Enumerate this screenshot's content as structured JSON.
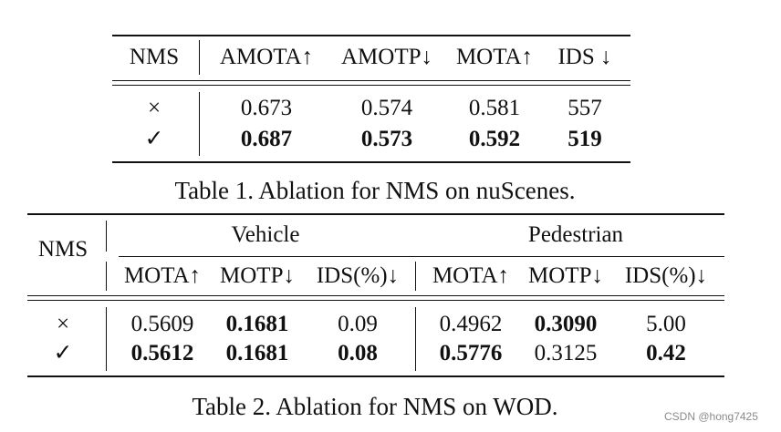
{
  "table1": {
    "headers": [
      "NMS",
      "AMOTA↑",
      "AMOTP↓",
      "MOTA↑",
      "IDS ↓"
    ],
    "rows": [
      [
        "×",
        "0.673",
        "0.574",
        "0.581",
        "557"
      ],
      [
        "✓",
        "0.687",
        "0.573",
        "0.592",
        "519"
      ]
    ],
    "caption": "Table 1. Ablation for NMS on nuScenes."
  },
  "table2": {
    "nms_header": "NMS",
    "groups": [
      "Vehicle",
      "Pedestrian"
    ],
    "subheaders": [
      "MOTA↑",
      "MOTP↓",
      "IDS(%)↓",
      "MOTA↑",
      "MOTP↓",
      "IDS(%)↓"
    ],
    "rows": [
      [
        "×",
        "0.5609",
        "0.1681",
        "0.09",
        "0.4962",
        "0.3090",
        "5.00"
      ],
      [
        "✓",
        "0.5612",
        "0.1681",
        "0.08",
        "0.5776",
        "0.3125",
        "0.42"
      ]
    ],
    "caption": "Table 2. Ablation for NMS on WOD."
  },
  "watermark": "CSDN @hong7425"
}
